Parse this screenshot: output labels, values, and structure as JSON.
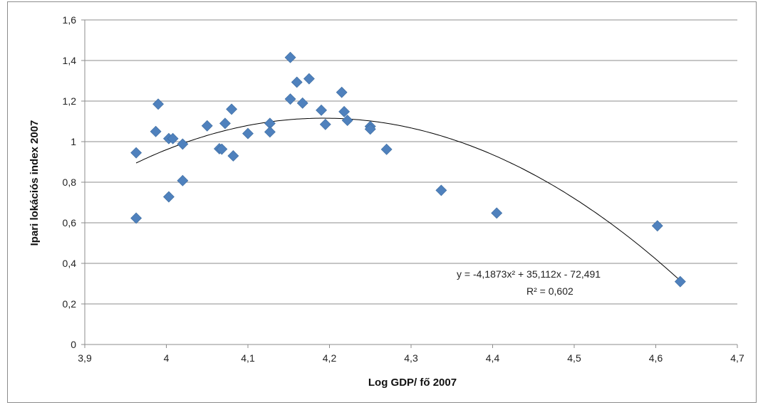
{
  "chart_data": {
    "type": "scatter",
    "title": "",
    "xlabel": "Log GDP/ fő 2007",
    "ylabel": "Ipari lokációs index  2007",
    "xlim": [
      3.9,
      4.7
    ],
    "ylim": [
      0,
      1.6
    ],
    "x_ticks": [
      "3,9",
      "4",
      "4,1",
      "4,2",
      "4,3",
      "4,4",
      "4,5",
      "4,6",
      "4,7"
    ],
    "y_ticks": [
      "0",
      "0,2",
      "0,4",
      "0,6",
      "0,8",
      "1",
      "1,2",
      "1,4",
      "1,6"
    ],
    "grid": "horizontal",
    "marker_color": "#4F81BD",
    "marker": "diamond",
    "points": [
      {
        "x": 3.963,
        "y": 0.945
      },
      {
        "x": 3.963,
        "y": 0.623
      },
      {
        "x": 3.987,
        "y": 1.05
      },
      {
        "x": 3.99,
        "y": 1.185
      },
      {
        "x": 4.003,
        "y": 1.015
      },
      {
        "x": 4.003,
        "y": 0.728
      },
      {
        "x": 4.008,
        "y": 1.015
      },
      {
        "x": 4.02,
        "y": 0.988
      },
      {
        "x": 4.02,
        "y": 0.808
      },
      {
        "x": 4.05,
        "y": 1.078
      },
      {
        "x": 4.065,
        "y": 0.965
      },
      {
        "x": 4.068,
        "y": 0.963
      },
      {
        "x": 4.072,
        "y": 1.09
      },
      {
        "x": 4.08,
        "y": 1.16
      },
      {
        "x": 4.082,
        "y": 0.93
      },
      {
        "x": 4.1,
        "y": 1.04
      },
      {
        "x": 4.127,
        "y": 1.09
      },
      {
        "x": 4.127,
        "y": 1.048
      },
      {
        "x": 4.152,
        "y": 1.415
      },
      {
        "x": 4.152,
        "y": 1.21
      },
      {
        "x": 4.16,
        "y": 1.293
      },
      {
        "x": 4.167,
        "y": 1.19
      },
      {
        "x": 4.175,
        "y": 1.31
      },
      {
        "x": 4.19,
        "y": 1.155
      },
      {
        "x": 4.195,
        "y": 1.085
      },
      {
        "x": 4.215,
        "y": 1.243
      },
      {
        "x": 4.218,
        "y": 1.148
      },
      {
        "x": 4.222,
        "y": 1.105
      },
      {
        "x": 4.25,
        "y": 1.075
      },
      {
        "x": 4.25,
        "y": 1.062
      },
      {
        "x": 4.27,
        "y": 0.962
      },
      {
        "x": 4.337,
        "y": 0.76
      },
      {
        "x": 4.405,
        "y": 0.648
      },
      {
        "x": 4.602,
        "y": 0.585
      },
      {
        "x": 4.63,
        "y": 0.31
      }
    ],
    "trendline": {
      "type": "polynomial",
      "a": -4.1873,
      "b": 35.112,
      "c": -72.491,
      "x_range": [
        3.963,
        4.63
      ],
      "equation_label": "y = -4,1873x² + 35,112x - 72,491",
      "r2_label": "R² = 0,602"
    }
  }
}
